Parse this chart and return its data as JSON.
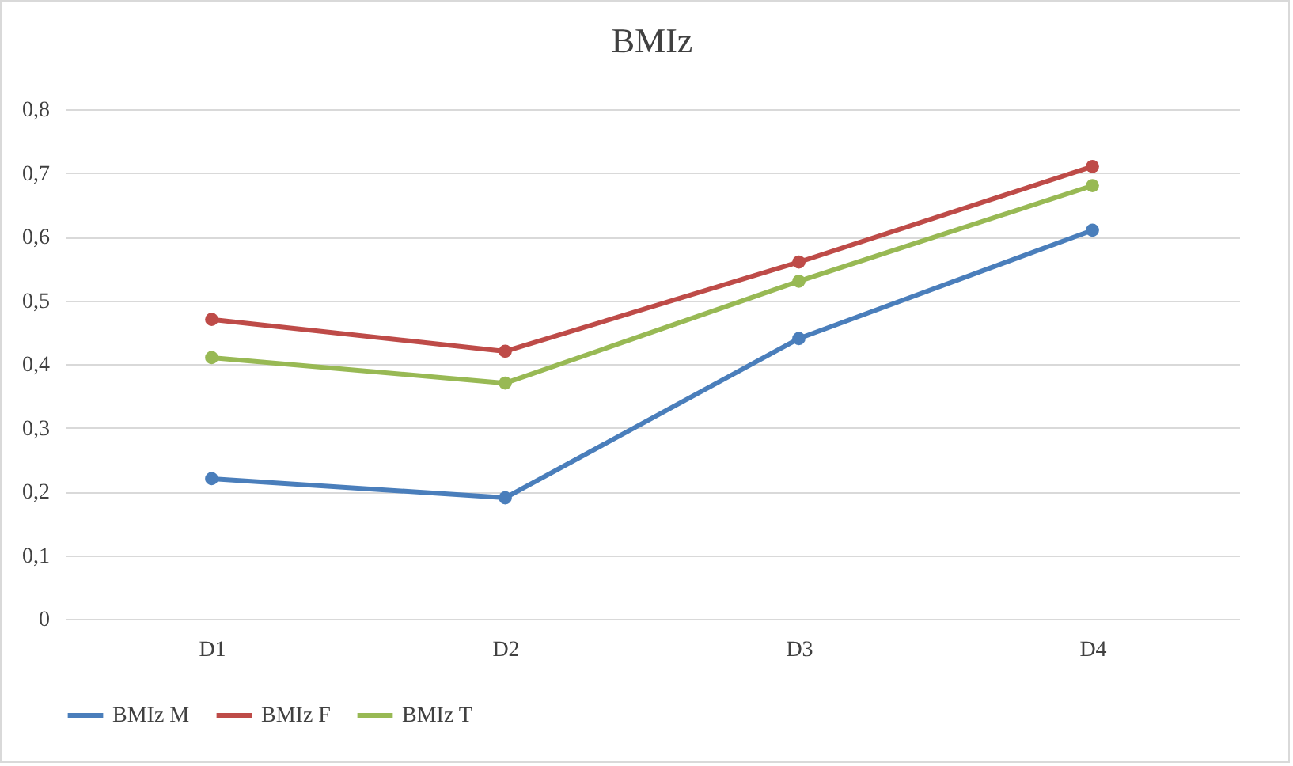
{
  "chart_data": {
    "type": "line",
    "title": "BMIz",
    "categories": [
      "D1",
      "D2",
      "D3",
      "D4"
    ],
    "series": [
      {
        "name": "BMIz M",
        "color": "#4a7ebb",
        "values": [
          0.22,
          0.19,
          0.44,
          0.61
        ]
      },
      {
        "name": "BMIz F",
        "color": "#be4b48",
        "values": [
          0.47,
          0.42,
          0.56,
          0.71
        ]
      },
      {
        "name": "BMIz T",
        "color": "#98b954",
        "values": [
          0.41,
          0.37,
          0.53,
          0.68
        ]
      }
    ],
    "ylim": [
      0,
      0.8
    ],
    "yticks": [
      0,
      {
        "value": 0.1,
        "label": "0,1"
      },
      {
        "value": 0.2,
        "label": "0,2"
      },
      {
        "value": 0.3,
        "label": "0,3"
      },
      {
        "value": 0.4,
        "label": "0,4"
      },
      {
        "value": 0.5,
        "label": "0,5"
      },
      {
        "value": 0.6,
        "label": "0,6"
      },
      {
        "value": 0.7,
        "label": "0,7"
      },
      {
        "value": 0.8,
        "label": "0,8"
      }
    ],
    "grid": "y",
    "legend": "bottom",
    "marker": "circle",
    "line_style": "solid"
  }
}
